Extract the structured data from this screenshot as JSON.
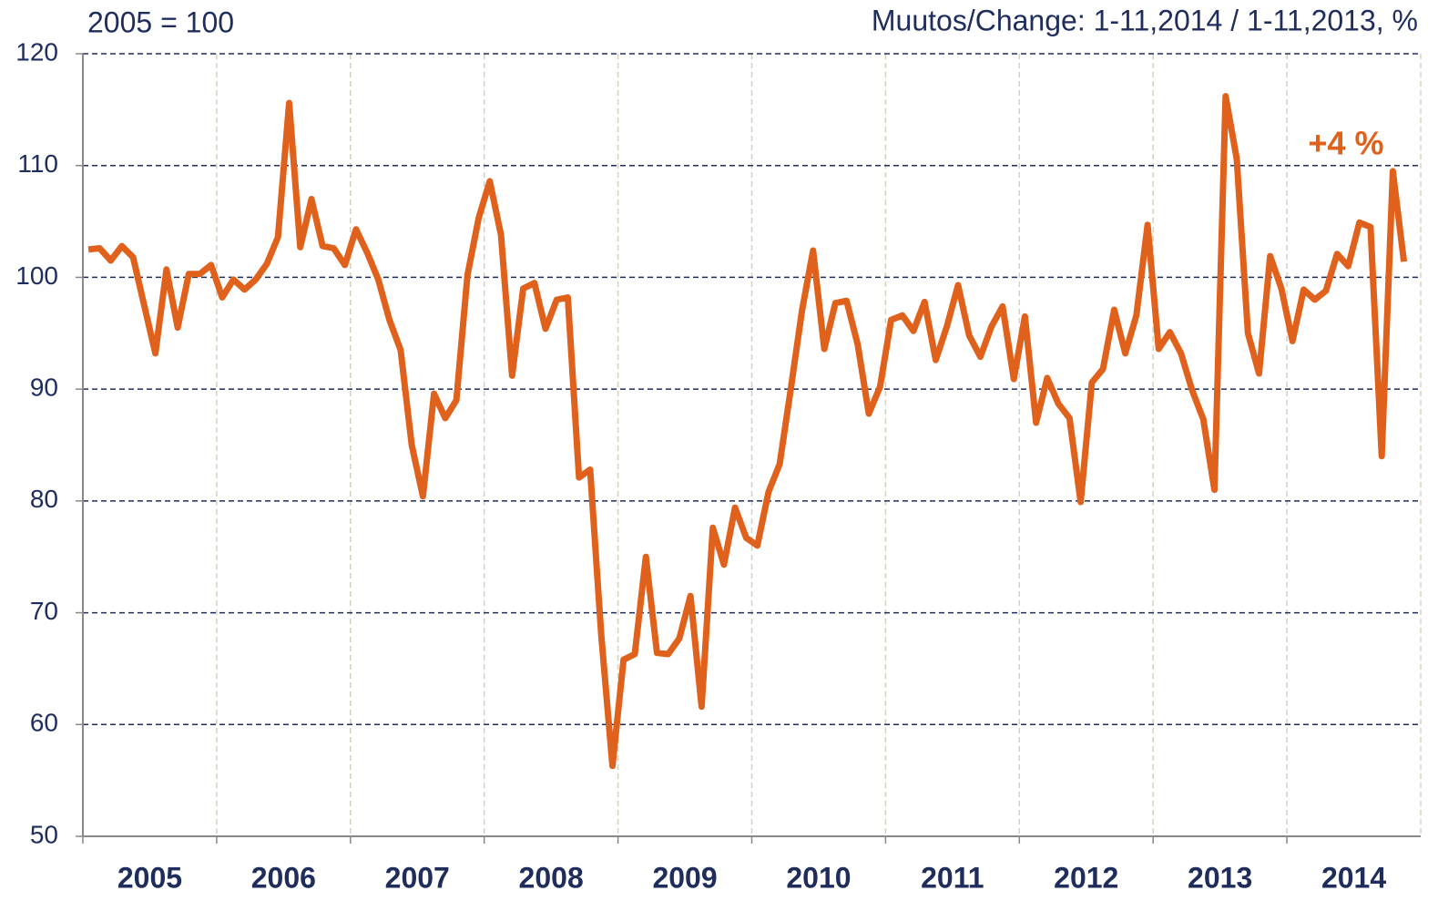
{
  "chart_data": {
    "type": "line",
    "subtitle_left": "2005 = 100",
    "subtitle_right": "Muutos/Change: 1-11,2014 / 1-11,2013, %",
    "annotation": "+4 %",
    "x_labels": [
      "2005",
      "2006",
      "2007",
      "2008",
      "2009",
      "2010",
      "2011",
      "2012",
      "2013",
      "2014"
    ],
    "color": "#e0611b",
    "values": [
      102.5,
      102.6,
      101.5,
      102.8,
      101.8,
      97.5,
      93.2,
      100.7,
      95.5,
      100.3,
      100.3,
      101.1,
      98.2,
      99.8,
      98.9,
      99.8,
      101.2,
      103.6,
      115.6,
      102.7,
      107,
      102.8,
      102.6,
      101.1,
      104.3,
      102.2,
      99.8,
      96.2,
      93.5,
      85,
      80.4,
      89.6,
      87.4,
      89,
      100.2,
      105.3,
      108.6,
      103.8,
      91.2,
      99,
      99.5,
      95.4,
      98,
      98.2,
      82.1,
      82.8,
      68,
      56.3,
      65.8,
      66.3,
      75,
      66.4,
      66.3,
      67.7,
      71.5,
      61.6,
      77.6,
      74.3,
      79.4,
      76.7,
      76,
      80.8,
      83.3,
      90,
      97,
      102.4,
      93.6,
      97.7,
      97.9,
      94,
      87.8,
      90.2,
      96.2,
      96.6,
      95.2,
      97.8,
      92.6,
      95.6,
      99.3,
      94.8,
      92.9,
      95.6,
      97.4,
      90.9,
      96.5,
      87,
      91,
      88.7,
      87.4,
      79.9,
      90.6,
      91.8,
      97.1,
      93.2,
      96.6,
      104.7,
      93.6,
      95.1,
      93.2,
      89.9,
      87.3,
      81,
      116.2,
      110.6,
      95,
      91.4,
      101.9,
      99,
      94.3,
      98.9,
      98,
      98.8,
      102.1,
      101,
      104.9,
      104.5,
      84,
      109.5,
      101.4
    ],
    "ylim": [
      50,
      120
    ],
    "yticks": [
      50,
      60,
      70,
      80,
      90,
      100,
      110,
      120
    ],
    "grid": true
  }
}
